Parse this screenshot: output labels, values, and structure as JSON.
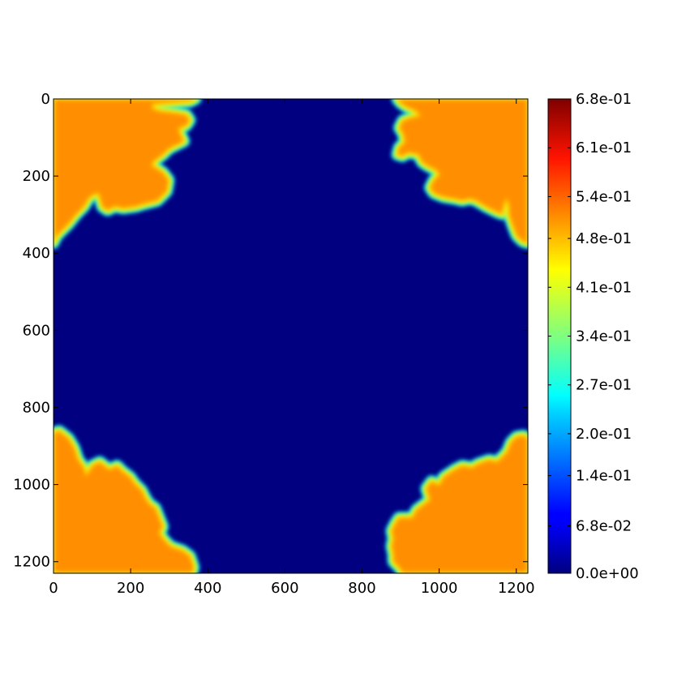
{
  "chart_data": {
    "type": "heatmap",
    "title": "",
    "xlabel": "",
    "ylabel": "",
    "xlim": [
      0,
      1230
    ],
    "ylim": [
      1230,
      0
    ],
    "x_ticks": [
      0,
      200,
      400,
      600,
      800,
      1000,
      1200
    ],
    "y_ticks": [
      0,
      200,
      400,
      600,
      800,
      1000,
      1200
    ],
    "x_tick_labels": [
      "0",
      "200",
      "400",
      "600",
      "800",
      "1000",
      "1200"
    ],
    "y_tick_labels": [
      "0",
      "200",
      "400",
      "600",
      "800",
      "1000",
      "1200"
    ],
    "colormap": "jet",
    "background_value": 0.0,
    "colorbar": {
      "min": 0.0,
      "max": 0.68,
      "tick_values": [
        0.0,
        0.068,
        0.14,
        0.2,
        0.27,
        0.34,
        0.41,
        0.48,
        0.54,
        0.61,
        0.68
      ],
      "tick_labels": [
        "0.0e+00",
        "6.8e-02",
        "1.4e-01",
        "2.0e-01",
        "2.7e-01",
        "3.4e-01",
        "4.1e-01",
        "4.8e-01",
        "5.4e-01",
        "6.1e-01",
        "6.8e-01"
      ]
    },
    "regions": [
      {
        "name": "top-left",
        "interior_value": 0.5,
        "boundary": [
          [
            0,
            0
          ],
          [
            370,
            0
          ],
          [
            355,
            8
          ],
          [
            295,
            12
          ],
          [
            260,
            15
          ],
          [
            255,
            22
          ],
          [
            275,
            30
          ],
          [
            315,
            35
          ],
          [
            345,
            40
          ],
          [
            355,
            55
          ],
          [
            345,
            70
          ],
          [
            325,
            78
          ],
          [
            330,
            90
          ],
          [
            340,
            110
          ],
          [
            320,
            120
          ],
          [
            300,
            130
          ],
          [
            285,
            145
          ],
          [
            265,
            160
          ],
          [
            255,
            170
          ],
          [
            285,
            190
          ],
          [
            300,
            210
          ],
          [
            295,
            240
          ],
          [
            270,
            265
          ],
          [
            250,
            270
          ],
          [
            230,
            275
          ],
          [
            215,
            280
          ],
          [
            180,
            285
          ],
          [
            160,
            280
          ],
          [
            140,
            290
          ],
          [
            125,
            280
          ],
          [
            120,
            260
          ],
          [
            115,
            245
          ],
          [
            95,
            255
          ],
          [
            80,
            280
          ],
          [
            60,
            300
          ],
          [
            40,
            325
          ],
          [
            25,
            340
          ],
          [
            10,
            355
          ],
          [
            0,
            375
          ]
        ]
      },
      {
        "name": "top-right",
        "interior_value": 0.5,
        "boundary": [
          [
            1230,
            0
          ],
          [
            1230,
            375
          ],
          [
            1215,
            370
          ],
          [
            1200,
            355
          ],
          [
            1190,
            330
          ],
          [
            1180,
            300
          ],
          [
            1180,
            280
          ],
          [
            1175,
            260
          ],
          [
            1168,
            280
          ],
          [
            1165,
            300
          ],
          [
            1150,
            295
          ],
          [
            1120,
            280
          ],
          [
            1095,
            265
          ],
          [
            1080,
            260
          ],
          [
            1060,
            265
          ],
          [
            1040,
            260
          ],
          [
            1010,
            255
          ],
          [
            985,
            245
          ],
          [
            975,
            230
          ],
          [
            985,
            210
          ],
          [
            1000,
            195
          ],
          [
            990,
            185
          ],
          [
            970,
            175
          ],
          [
            955,
            165
          ],
          [
            945,
            145
          ],
          [
            920,
            140
          ],
          [
            905,
            150
          ],
          [
            890,
            145
          ],
          [
            895,
            125
          ],
          [
            910,
            112
          ],
          [
            905,
            90
          ],
          [
            895,
            75
          ],
          [
            905,
            55
          ],
          [
            925,
            48
          ],
          [
            950,
            42
          ],
          [
            935,
            30
          ],
          [
            915,
            22
          ],
          [
            900,
            12
          ],
          [
            890,
            0
          ]
        ]
      },
      {
        "name": "bottom-left",
        "interior_value": 0.5,
        "boundary": [
          [
            0,
            1230
          ],
          [
            0,
            865
          ],
          [
            15,
            860
          ],
          [
            40,
            880
          ],
          [
            55,
            905
          ],
          [
            65,
            935
          ],
          [
            80,
            955
          ],
          [
            85,
            975
          ],
          [
            100,
            950
          ],
          [
            120,
            940
          ],
          [
            145,
            960
          ],
          [
            165,
            950
          ],
          [
            180,
            965
          ],
          [
            200,
            980
          ],
          [
            210,
            995
          ],
          [
            230,
            1015
          ],
          [
            240,
            1035
          ],
          [
            250,
            1050
          ],
          [
            265,
            1060
          ],
          [
            275,
            1085
          ],
          [
            285,
            1110
          ],
          [
            275,
            1125
          ],
          [
            290,
            1145
          ],
          [
            305,
            1160
          ],
          [
            335,
            1170
          ],
          [
            355,
            1185
          ],
          [
            360,
            1200
          ],
          [
            365,
            1215
          ],
          [
            360,
            1230
          ]
        ]
      },
      {
        "name": "bottom-right",
        "interior_value": 0.5,
        "boundary": [
          [
            1230,
            1230
          ],
          [
            905,
            1230
          ],
          [
            895,
            1215
          ],
          [
            880,
            1200
          ],
          [
            880,
            1180
          ],
          [
            875,
            1160
          ],
          [
            880,
            1140
          ],
          [
            875,
            1120
          ],
          [
            885,
            1100
          ],
          [
            895,
            1085
          ],
          [
            930,
            1085
          ],
          [
            940,
            1065
          ],
          [
            960,
            1050
          ],
          [
            975,
            1040
          ],
          [
            965,
            1010
          ],
          [
            980,
            990
          ],
          [
            1000,
            1000
          ],
          [
            1010,
            980
          ],
          [
            1025,
            970
          ],
          [
            1040,
            960
          ],
          [
            1060,
            950
          ],
          [
            1085,
            955
          ],
          [
            1100,
            945
          ],
          [
            1130,
            935
          ],
          [
            1150,
            940
          ],
          [
            1175,
            915
          ],
          [
            1185,
            890
          ],
          [
            1200,
            875
          ],
          [
            1220,
            872
          ],
          [
            1230,
            880
          ]
        ]
      }
    ]
  }
}
